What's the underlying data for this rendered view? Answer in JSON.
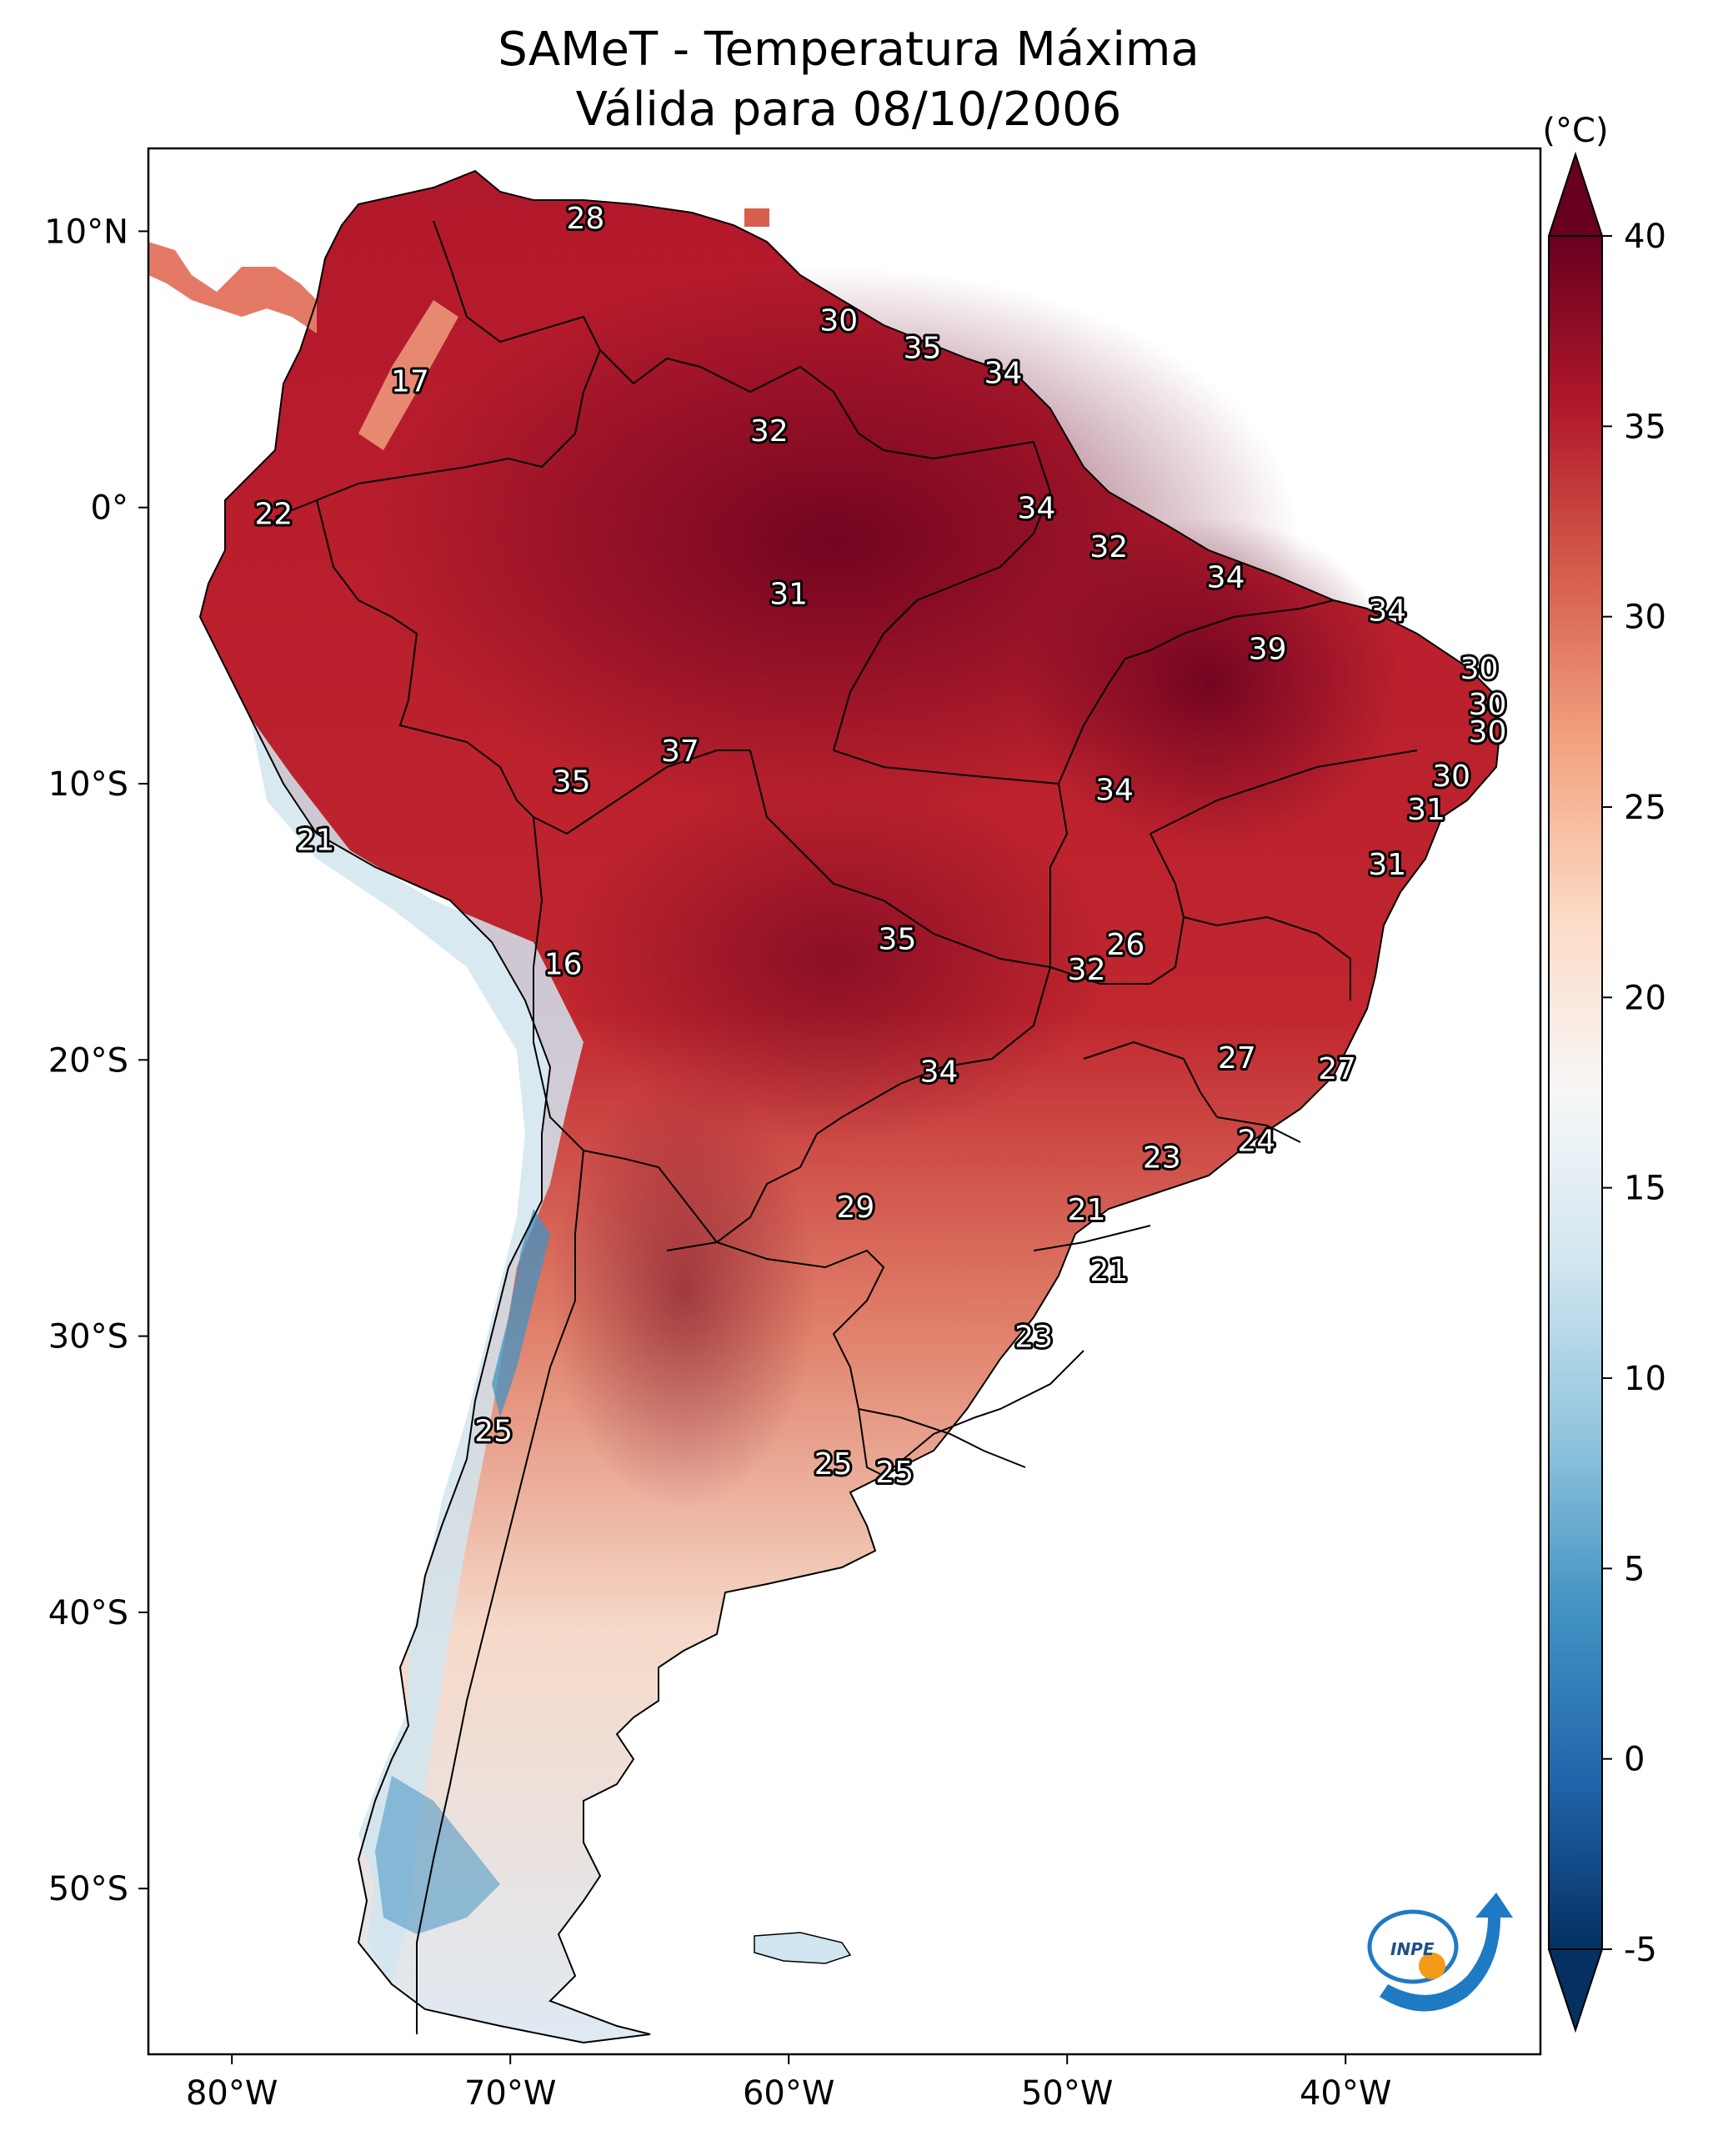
{
  "title": {
    "line1": "SAMeT - Temperatura Máxima",
    "line2": "Válida para 08/10/2006"
  },
  "axes": {
    "x_ticks": [
      {
        "lon": -80,
        "label": "80°W"
      },
      {
        "lon": -70,
        "label": "70°W"
      },
      {
        "lon": -60,
        "label": "60°W"
      },
      {
        "lon": -50,
        "label": "50°W"
      },
      {
        "lon": -40,
        "label": "40°W"
      }
    ],
    "y_ticks": [
      {
        "lat": 10,
        "label": "10°N"
      },
      {
        "lat": 0,
        "label": "0°"
      },
      {
        "lat": -10,
        "label": "10°S"
      },
      {
        "lat": -20,
        "label": "20°S"
      },
      {
        "lat": -30,
        "label": "30°S"
      },
      {
        "lat": -40,
        "label": "40°S"
      },
      {
        "lat": -50,
        "label": "50°S"
      }
    ],
    "lon_range": [
      -83,
      -33
    ],
    "lat_range": [
      -56,
      13
    ]
  },
  "colorbar": {
    "unit": "(°C)",
    "ticks": [
      {
        "value": 40,
        "label": "40"
      },
      {
        "value": 35,
        "label": "35"
      },
      {
        "value": 30,
        "label": "30"
      },
      {
        "value": 25,
        "label": "25"
      },
      {
        "value": 20,
        "label": "20"
      },
      {
        "value": 15,
        "label": "15"
      },
      {
        "value": 10,
        "label": "10"
      },
      {
        "value": 5,
        "label": "5"
      },
      {
        "value": 0,
        "label": "0"
      },
      {
        "value": -5,
        "label": "-5"
      }
    ],
    "range": [
      -5,
      40
    ],
    "colors": [
      "#053061",
      "#2166ac",
      "#4393c3",
      "#92c5de",
      "#d1e5f0",
      "#f7f7f7",
      "#fddbc7",
      "#f4a582",
      "#d6604d",
      "#b2182b",
      "#67001f"
    ]
  },
  "logo": {
    "text": "INPE"
  },
  "station_values": [
    {
      "lon": -67.3,
      "lat": 10.5,
      "label": "28"
    },
    {
      "lon": -73.6,
      "lat": 4.6,
      "label": "17"
    },
    {
      "lon": -78.5,
      "lat": -0.2,
      "label": "22"
    },
    {
      "lon": -58.2,
      "lat": 6.8,
      "label": "30"
    },
    {
      "lon": -55.2,
      "lat": 5.8,
      "label": "35"
    },
    {
      "lon": -52.3,
      "lat": 4.9,
      "label": "34"
    },
    {
      "lon": -60.7,
      "lat": 2.8,
      "label": "32"
    },
    {
      "lon": -51.1,
      "lat": 0.0,
      "label": "34"
    },
    {
      "lon": -48.5,
      "lat": -1.4,
      "label": "32"
    },
    {
      "lon": -60.0,
      "lat": -3.1,
      "label": "31"
    },
    {
      "lon": -44.3,
      "lat": -2.5,
      "label": "34"
    },
    {
      "lon": -38.5,
      "lat": -3.7,
      "label": "34"
    },
    {
      "lon": -42.8,
      "lat": -5.1,
      "label": "39"
    },
    {
      "lon": -35.2,
      "lat": -5.8,
      "label": "30"
    },
    {
      "lon": -34.9,
      "lat": -7.1,
      "label": "30"
    },
    {
      "lon": -34.9,
      "lat": -8.1,
      "label": "30"
    },
    {
      "lon": -63.9,
      "lat": -8.8,
      "label": "37"
    },
    {
      "lon": -67.8,
      "lat": -9.9,
      "label": "35"
    },
    {
      "lon": -36.2,
      "lat": -9.7,
      "label": "30"
    },
    {
      "lon": -48.3,
      "lat": -10.2,
      "label": "34"
    },
    {
      "lon": -37.1,
      "lat": -10.9,
      "label": "31"
    },
    {
      "lon": -77.0,
      "lat": -12.0,
      "label": "21"
    },
    {
      "lon": -38.5,
      "lat": -12.9,
      "label": "31"
    },
    {
      "lon": -68.1,
      "lat": -16.5,
      "label": "16"
    },
    {
      "lon": -56.1,
      "lat": -15.6,
      "label": "35"
    },
    {
      "lon": -47.9,
      "lat": -15.8,
      "label": "26"
    },
    {
      "lon": -49.3,
      "lat": -16.7,
      "label": "32"
    },
    {
      "lon": -54.6,
      "lat": -20.4,
      "label": "34"
    },
    {
      "lon": -43.9,
      "lat": -19.9,
      "label": "27"
    },
    {
      "lon": -40.3,
      "lat": -20.3,
      "label": "27"
    },
    {
      "lon": -43.2,
      "lat": -22.9,
      "label": "24"
    },
    {
      "lon": -46.6,
      "lat": -23.5,
      "label": "23"
    },
    {
      "lon": -57.6,
      "lat": -25.3,
      "label": "29"
    },
    {
      "lon": -49.3,
      "lat": -25.4,
      "label": "21"
    },
    {
      "lon": -48.5,
      "lat": -27.6,
      "label": "21"
    },
    {
      "lon": -51.2,
      "lat": -30.0,
      "label": "23"
    },
    {
      "lon": -70.6,
      "lat": -33.4,
      "label": "25"
    },
    {
      "lon": -58.4,
      "lat": -34.6,
      "label": "25"
    },
    {
      "lon": -56.2,
      "lat": -34.9,
      "label": "25"
    }
  ]
}
